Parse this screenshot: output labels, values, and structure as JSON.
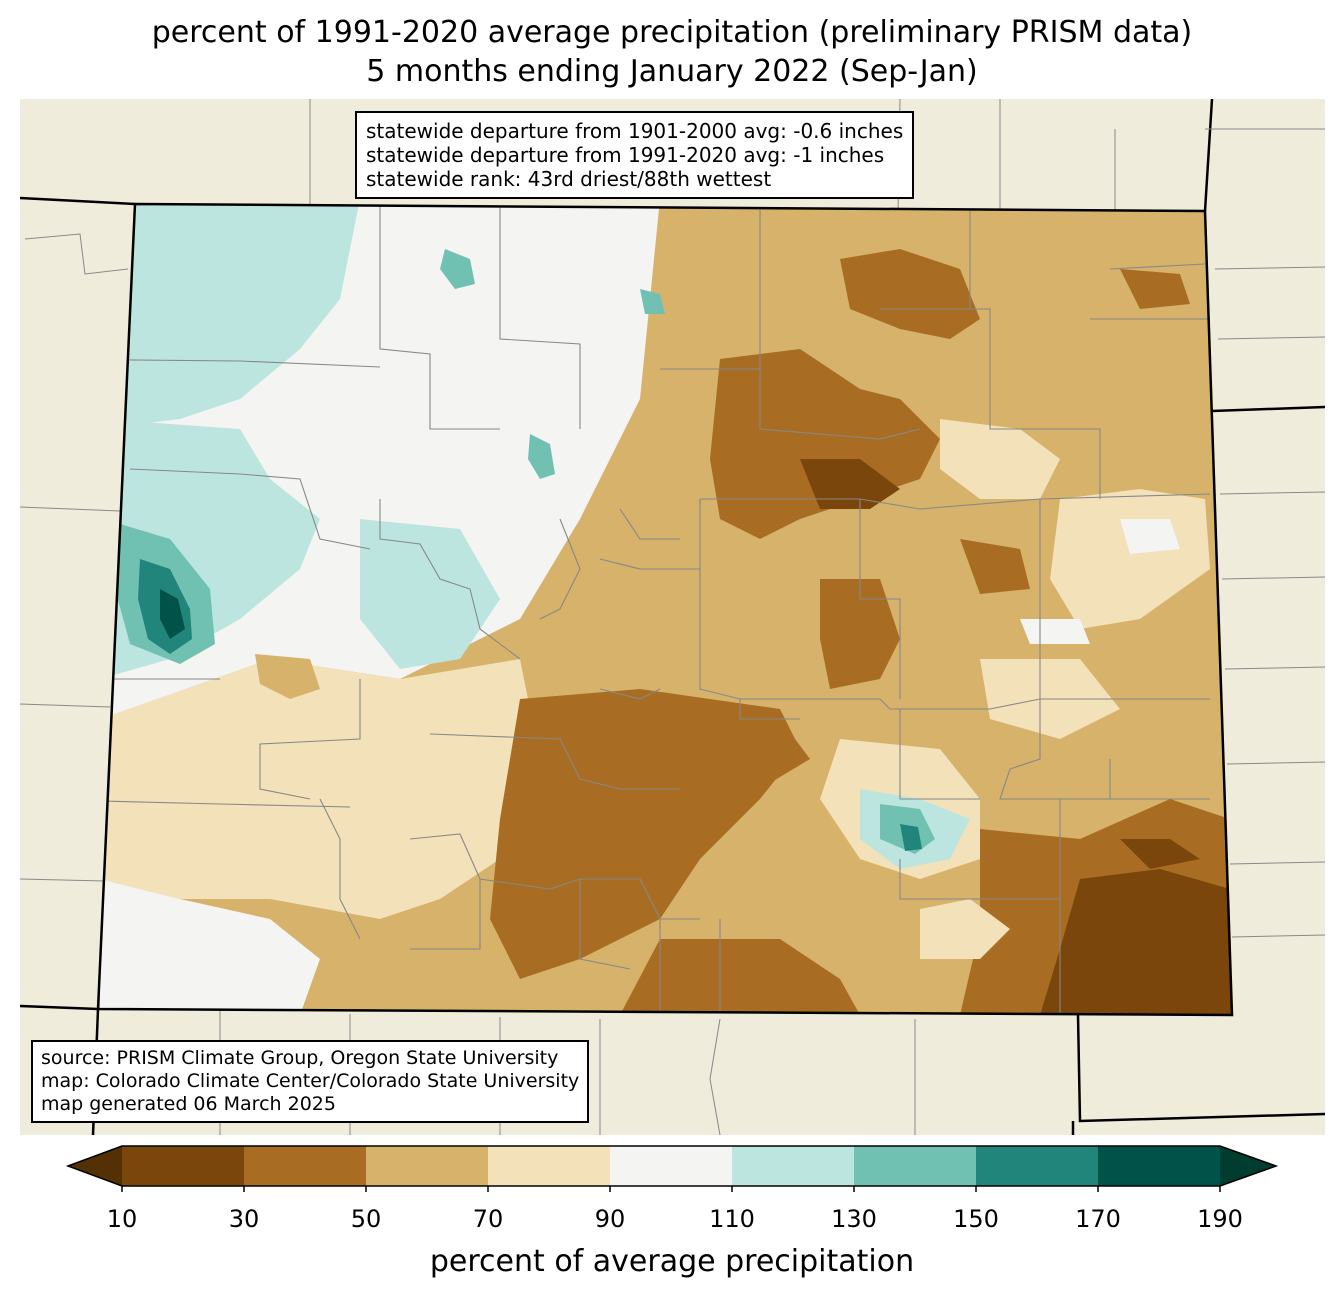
{
  "title": {
    "line1": "percent of 1991-2020 average precipitation (preliminary PRISM data)",
    "line2": "5 months ending January 2022 (Sep-Jan)"
  },
  "stats": {
    "line1": "statewide departure from 1901-2000 avg: -0.6 inches",
    "line2": "statewide departure from 1991-2020 avg: -1 inches",
    "line3": "statewide rank: 43rd driest/88th wettest"
  },
  "credits": {
    "line1": "source: PRISM Climate Group, Oregon State University",
    "line2": "map: Colorado Climate Center/Colorado State University",
    "line3": "map generated 06 March 2025"
  },
  "colorbar": {
    "label": "percent of average precipitation",
    "ticks": [
      "10",
      "30",
      "50",
      "70",
      "90",
      "110",
      "130",
      "150",
      "170",
      "190"
    ],
    "colors": [
      "#543005",
      "#7a460c",
      "#a86d22",
      "#d6b26b",
      "#f2e1b9",
      "#f4f4f2",
      "#bde5df",
      "#71c1b3",
      "#21857b",
      "#01534a",
      "#003c30"
    ]
  },
  "map_colors": {
    "background": "#efecdb",
    "border": "#000000",
    "county_lines": "#888888"
  }
}
